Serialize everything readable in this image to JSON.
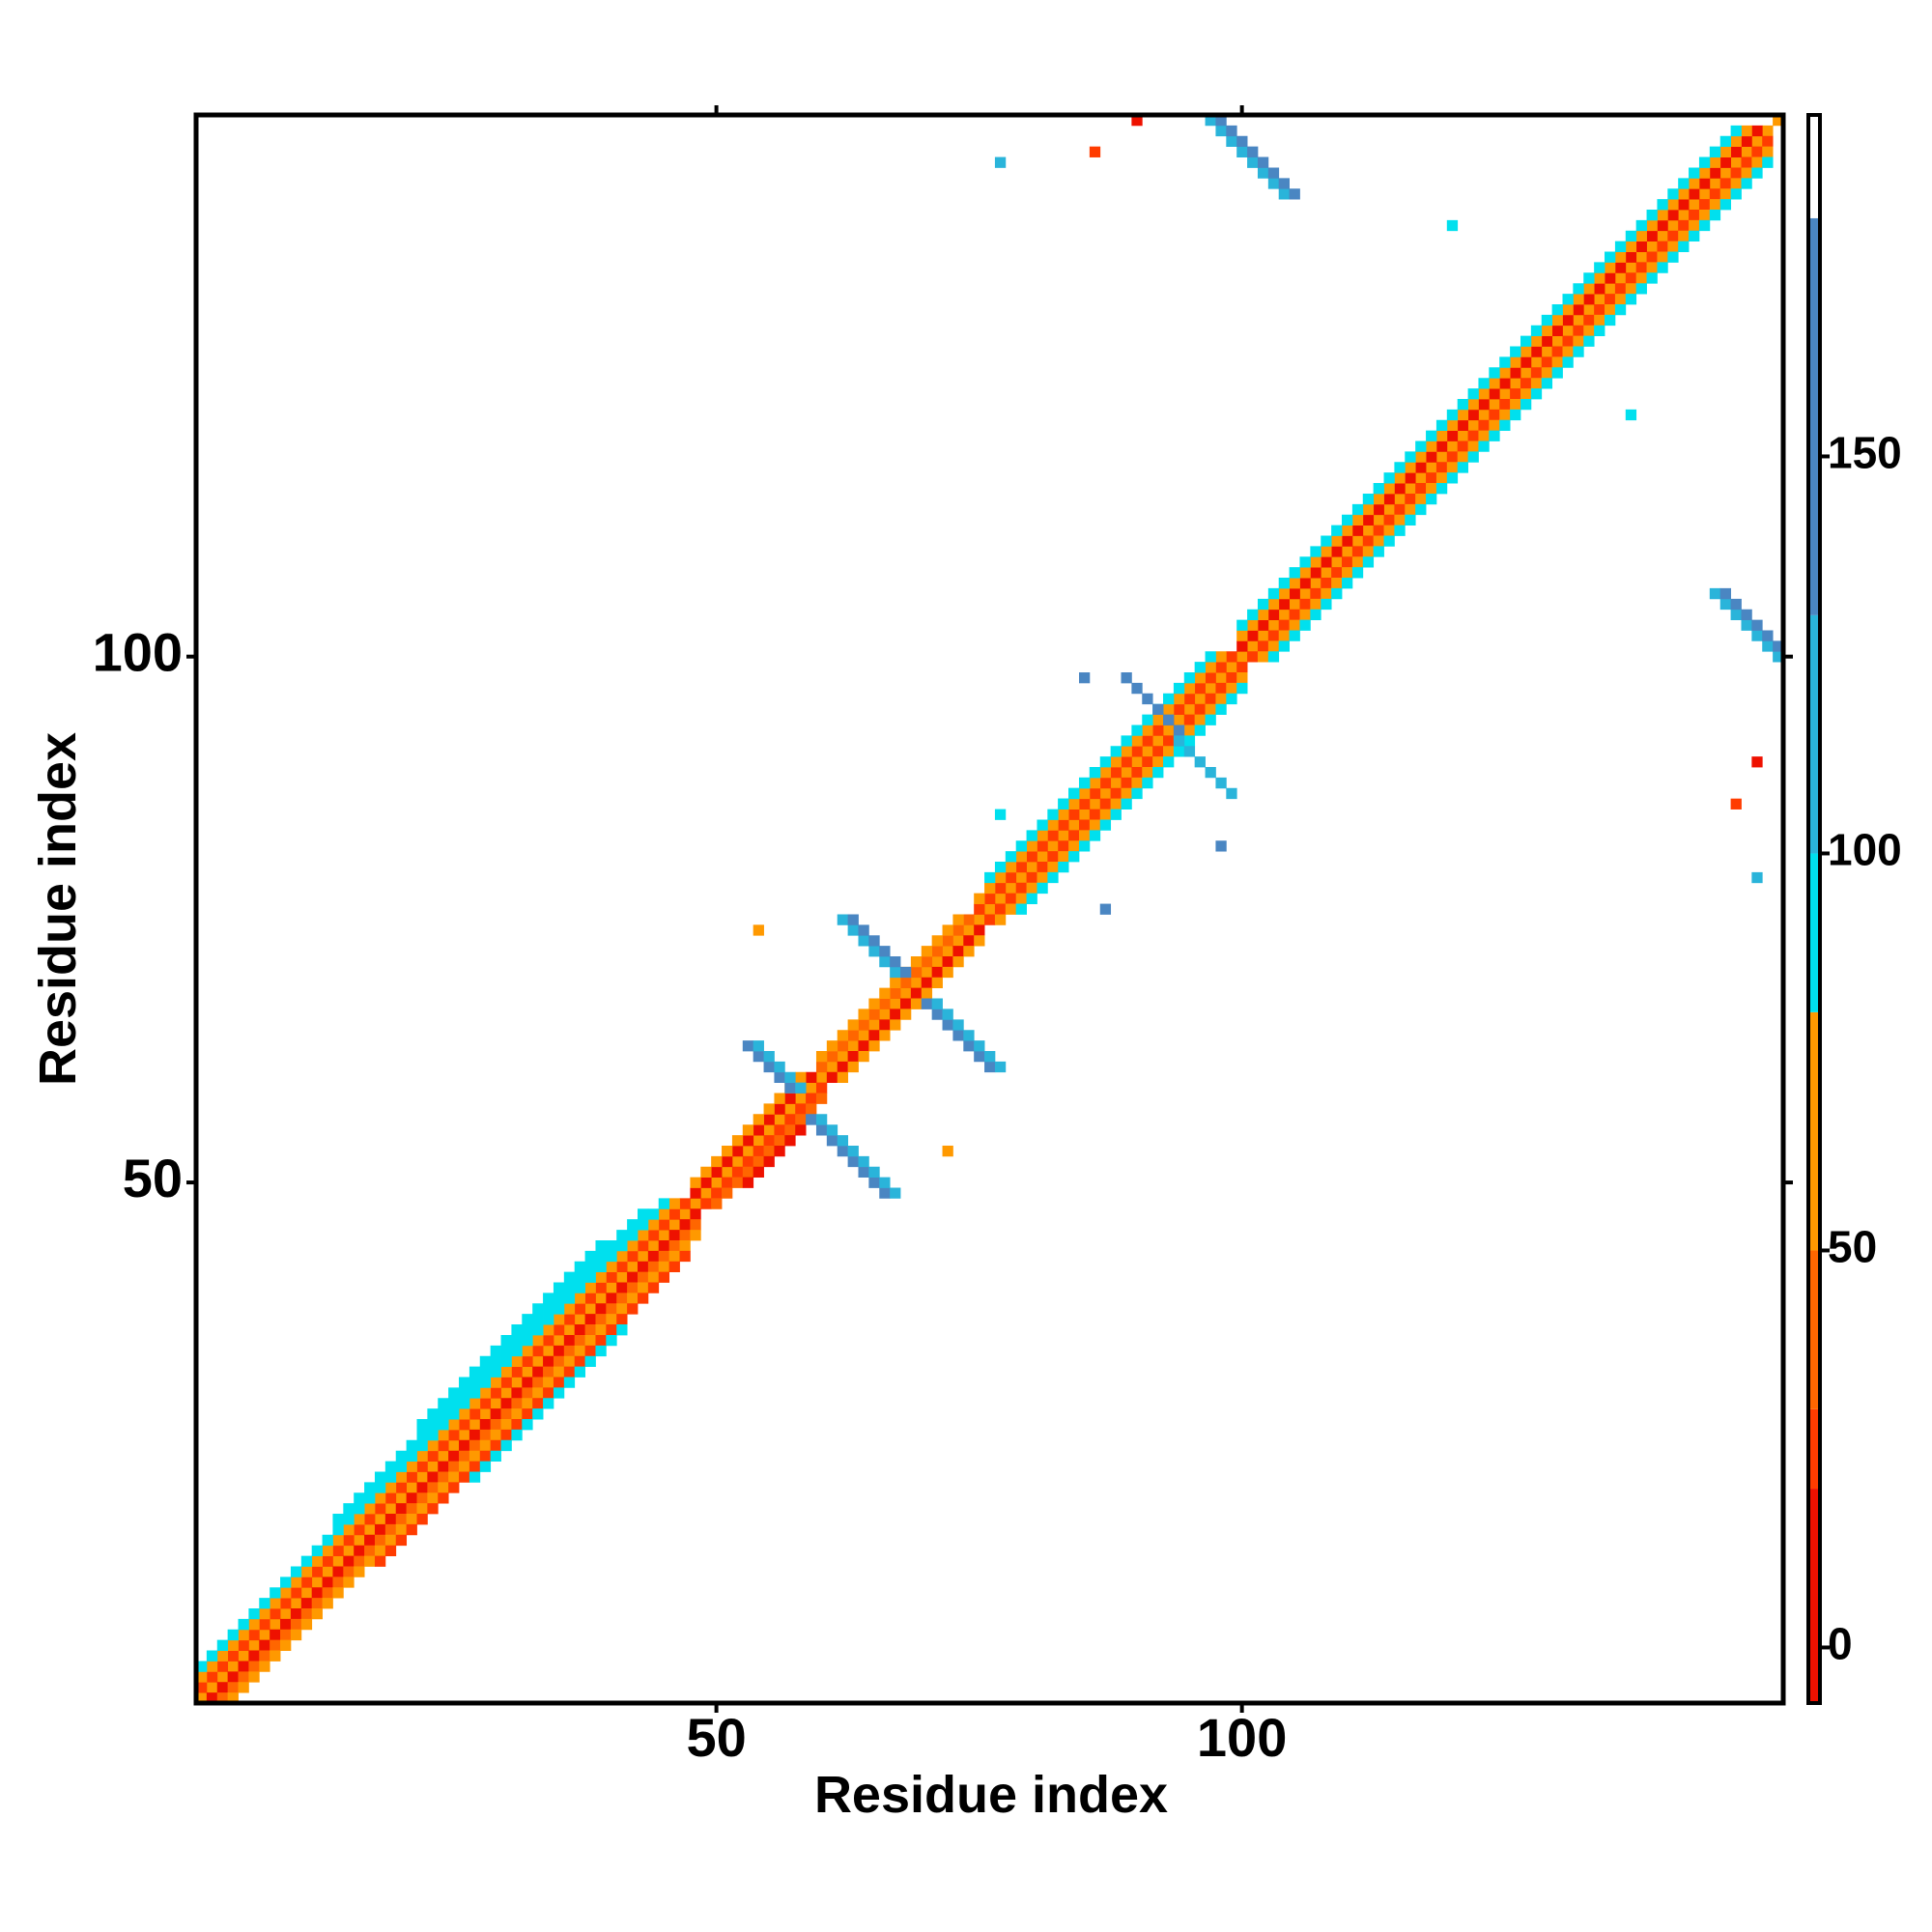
{
  "chart_data": {
    "type": "heatmap",
    "xlabel": "Residue index",
    "ylabel": "Residue index",
    "xlim": [
      0.5,
      151.5
    ],
    "ylim": [
      0.5,
      151.5
    ],
    "xticks": [
      50,
      100
    ],
    "yticks": [
      50,
      100
    ],
    "clim": [
      -7,
      193
    ],
    "cticks": [
      0,
      50,
      100,
      150
    ],
    "color_bins": [
      {
        "from": -7,
        "to": 20,
        "color": "#ee1100"
      },
      {
        "from": 20,
        "to": 30,
        "color": "#ff3c00"
      },
      {
        "from": 30,
        "to": 50,
        "color": "#ff6600"
      },
      {
        "from": 50,
        "to": 80,
        "color": "#ff9900"
      },
      {
        "from": 80,
        "to": 100,
        "color": "#00e0ee"
      },
      {
        "from": 100,
        "to": 130,
        "color": "#2ab4da"
      },
      {
        "from": 130,
        "to": 180,
        "color": "#4a86c2"
      },
      {
        "from": 180,
        "to": 193,
        "color": "#ffffff"
      }
    ],
    "runs": [
      {
        "x": 1,
        "y": 1,
        "n": 151,
        "dir": "diag",
        "value": 65
      },
      {
        "x": 1,
        "y": 2,
        "n": 47,
        "dir": "diag",
        "value": 25
      },
      {
        "x": 2,
        "y": 1,
        "n": 47,
        "dir": "diag",
        "value": 10
      },
      {
        "x": 1,
        "y": 3,
        "n": 46,
        "dir": "diag",
        "value": 65
      },
      {
        "x": 3,
        "y": 1,
        "n": 46,
        "dir": "diag",
        "value": 40
      },
      {
        "x": 1,
        "y": 4,
        "n": 45,
        "dir": "diag",
        "value": 90
      },
      {
        "x": 4,
        "y": 1,
        "n": 45,
        "dir": "diag",
        "value": 65
      },
      {
        "x": 14,
        "y": 18,
        "n": 30,
        "dir": "diag",
        "value": 90
      },
      {
        "x": 18,
        "y": 14,
        "n": 30,
        "dir": "diag",
        "value": 25
      },
      {
        "x": 22,
        "y": 27,
        "n": 18,
        "dir": "diag",
        "value": 90
      },
      {
        "x": 27,
        "y": 22,
        "n": 15,
        "dir": "diag",
        "value": 90
      },
      {
        "x": 48,
        "y": 49,
        "n": 12,
        "dir": "diag",
        "value": 10
      },
      {
        "x": 49,
        "y": 48,
        "n": 12,
        "dir": "diag",
        "value": 25
      },
      {
        "x": 48,
        "y": 50,
        "n": 11,
        "dir": "diag",
        "value": 65
      },
      {
        "x": 50,
        "y": 48,
        "n": 11,
        "dir": "diag",
        "value": 40
      },
      {
        "x": 53,
        "y": 50,
        "n": 6,
        "dir": "diag",
        "value": 10
      },
      {
        "x": 60,
        "y": 61,
        "n": 15,
        "dir": "diag",
        "value": 40
      },
      {
        "x": 61,
        "y": 60,
        "n": 15,
        "dir": "diag",
        "value": 10
      },
      {
        "x": 60,
        "y": 62,
        "n": 14,
        "dir": "diag",
        "value": 65
      },
      {
        "x": 62,
        "y": 60,
        "n": 14,
        "dir": "diag",
        "value": 65
      },
      {
        "x": 75,
        "y": 76,
        "n": 25,
        "dir": "diag",
        "value": 25
      },
      {
        "x": 76,
        "y": 75,
        "n": 25,
        "dir": "diag",
        "value": 25
      },
      {
        "x": 75,
        "y": 77,
        "n": 24,
        "dir": "diag",
        "value": 65
      },
      {
        "x": 77,
        "y": 75,
        "n": 24,
        "dir": "diag",
        "value": 65
      },
      {
        "x": 76,
        "y": 79,
        "n": 22,
        "dir": "diag",
        "value": 90
      },
      {
        "x": 79,
        "y": 76,
        "n": 22,
        "dir": "diag",
        "value": 90
      },
      {
        "x": 100,
        "y": 101,
        "n": 50,
        "dir": "diag",
        "value": 10
      },
      {
        "x": 101,
        "y": 100,
        "n": 50,
        "dir": "diag",
        "value": 25
      },
      {
        "x": 100,
        "y": 102,
        "n": 49,
        "dir": "diag",
        "value": 65
      },
      {
        "x": 102,
        "y": 100,
        "n": 49,
        "dir": "diag",
        "value": 65
      },
      {
        "x": 100,
        "y": 103,
        "n": 48,
        "dir": "diag",
        "value": 90
      },
      {
        "x": 103,
        "y": 100,
        "n": 48,
        "dir": "diag",
        "value": 90
      },
      {
        "x": 53,
        "y": 63,
        "n": 5,
        "dir": "anti",
        "value": 155
      },
      {
        "x": 54,
        "y": 63,
        "n": 5,
        "dir": "anti",
        "value": 115
      },
      {
        "x": 59,
        "y": 56,
        "n": 8,
        "dir": "anti",
        "value": 155
      },
      {
        "x": 60,
        "y": 56,
        "n": 8,
        "dir": "anti",
        "value": 115
      },
      {
        "x": 62,
        "y": 75,
        "n": 6,
        "dir": "anti",
        "value": 115
      },
      {
        "x": 63,
        "y": 75,
        "n": 6,
        "dir": "anti",
        "value": 155
      },
      {
        "x": 70,
        "y": 67,
        "n": 7,
        "dir": "anti",
        "value": 155
      },
      {
        "x": 71,
        "y": 67,
        "n": 7,
        "dir": "anti",
        "value": 115
      },
      {
        "x": 89,
        "y": 98,
        "n": 6,
        "dir": "anti",
        "value": 155
      },
      {
        "x": 94,
        "y": 92,
        "n": 6,
        "dir": "anti",
        "value": 115
      },
      {
        "x": 83,
        "y": 86,
        "n": 4,
        "dir": "diag",
        "value": 90
      },
      {
        "x": 77,
        "y": 85,
        "n": 1,
        "dir": "diag",
        "value": 90
      },
      {
        "x": 98,
        "y": 82,
        "n": 1,
        "dir": "diag",
        "value": 155
      },
      {
        "x": 87,
        "y": 76,
        "n": 1,
        "dir": "diag",
        "value": 155
      },
      {
        "x": 85,
        "y": 98,
        "n": 1,
        "dir": "diag",
        "value": 155
      },
      {
        "x": 97,
        "y": 151,
        "n": 8,
        "dir": "anti",
        "value": 115
      },
      {
        "x": 98,
        "y": 151,
        "n": 8,
        "dir": "anti",
        "value": 155
      },
      {
        "x": 145,
        "y": 106,
        "n": 7,
        "dir": "anti",
        "value": 115
      },
      {
        "x": 146,
        "y": 106,
        "n": 6,
        "dir": "anti",
        "value": 155
      },
      {
        "x": 90,
        "y": 151,
        "n": 1,
        "dir": "diag",
        "value": 10
      },
      {
        "x": 86,
        "y": 148,
        "n": 1,
        "dir": "diag",
        "value": 25
      },
      {
        "x": 77,
        "y": 147,
        "n": 1,
        "dir": "diag",
        "value": 115
      },
      {
        "x": 120,
        "y": 141,
        "n": 1,
        "dir": "diag",
        "value": 90
      },
      {
        "x": 137,
        "y": 123,
        "n": 1,
        "dir": "diag",
        "value": 90
      },
      {
        "x": 149,
        "y": 79,
        "n": 1,
        "dir": "diag",
        "value": 115
      },
      {
        "x": 147,
        "y": 86,
        "n": 1,
        "dir": "diag",
        "value": 25
      },
      {
        "x": 149,
        "y": 90,
        "n": 1,
        "dir": "diag",
        "value": 10
      },
      {
        "x": 72,
        "y": 53,
        "n": 1,
        "dir": "diag",
        "value": 65
      },
      {
        "x": 54,
        "y": 74,
        "n": 1,
        "dir": "diag",
        "value": 65
      }
    ]
  }
}
